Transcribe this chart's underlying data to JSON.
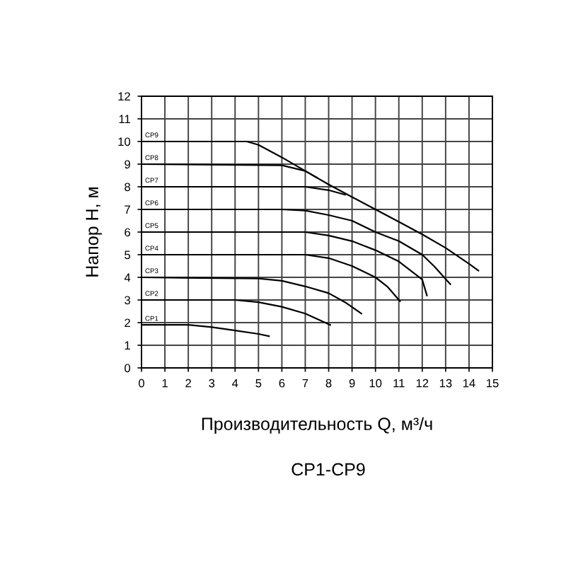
{
  "chart_data": {
    "type": "line",
    "xlabel": "Производительность Q, м³/ч",
    "ylabel": "Напор H, м",
    "annotations": [
      "CP1-CP9"
    ],
    "xlim": [
      0,
      15
    ],
    "ylim": [
      0,
      12
    ],
    "xticks": [
      0,
      1,
      2,
      3,
      4,
      5,
      6,
      7,
      8,
      9,
      10,
      11,
      12,
      13,
      14,
      15
    ],
    "yticks": [
      0,
      1,
      2,
      3,
      4,
      5,
      6,
      7,
      8,
      9,
      10,
      11,
      12
    ],
    "grid": true,
    "marker": "none",
    "line_style": "solid",
    "series": [
      {
        "name": "CP1",
        "color": "#000000",
        "x": [
          0,
          2,
          3,
          4,
          5,
          5.45
        ],
        "values": [
          1.9,
          1.9,
          1.8,
          1.65,
          1.5,
          1.4
        ]
      },
      {
        "name": "CP2",
        "color": "#000000",
        "x": [
          0,
          4,
          5,
          6,
          7,
          8.07
        ],
        "values": [
          3,
          3,
          2.9,
          2.7,
          2.4,
          1.9
        ]
      },
      {
        "name": "CP3",
        "color": "#000000",
        "x": [
          0,
          5,
          6,
          7,
          8,
          8.7,
          9.4
        ],
        "values": [
          4,
          3.95,
          3.85,
          3.6,
          3.3,
          2.9,
          2.4
        ]
      },
      {
        "name": "CP4",
        "color": "#000000",
        "x": [
          0,
          7,
          8,
          9,
          10,
          10.5,
          11.05
        ],
        "values": [
          5,
          5,
          4.85,
          4.5,
          4.0,
          3.6,
          2.95
        ]
      },
      {
        "name": "CP5",
        "color": "#000000",
        "x": [
          0,
          7,
          8,
          9,
          10,
          11,
          12,
          12.2
        ],
        "values": [
          6,
          6,
          5.85,
          5.6,
          5.2,
          4.7,
          3.9,
          3.2
        ]
      },
      {
        "name": "CP6",
        "color": "#000000",
        "x": [
          0,
          6,
          7,
          8,
          9,
          10,
          11,
          12,
          12.5,
          13.2
        ],
        "values": [
          7,
          7,
          6.95,
          6.75,
          6.5,
          6.0,
          5.6,
          5.0,
          4.5,
          3.7
        ]
      },
      {
        "name": "CP7",
        "color": "#000000",
        "x": [
          0,
          7,
          8,
          8.7
        ],
        "values": [
          8,
          8,
          7.85,
          7.65
        ]
      },
      {
        "name": "CP8",
        "color": "#000000",
        "x": [
          0,
          6,
          7,
          7.5
        ],
        "values": [
          9,
          8.95,
          8.7,
          8.4
        ]
      },
      {
        "name": "CP9",
        "color": "#000000",
        "x": [
          0,
          4.5,
          5,
          6,
          7,
          8,
          9,
          10,
          11,
          12,
          13,
          14,
          14.4
        ],
        "values": [
          10,
          10,
          9.85,
          9.3,
          8.7,
          8.1,
          7.55,
          7.0,
          6.45,
          5.9,
          5.3,
          4.6,
          4.3
        ]
      }
    ]
  }
}
